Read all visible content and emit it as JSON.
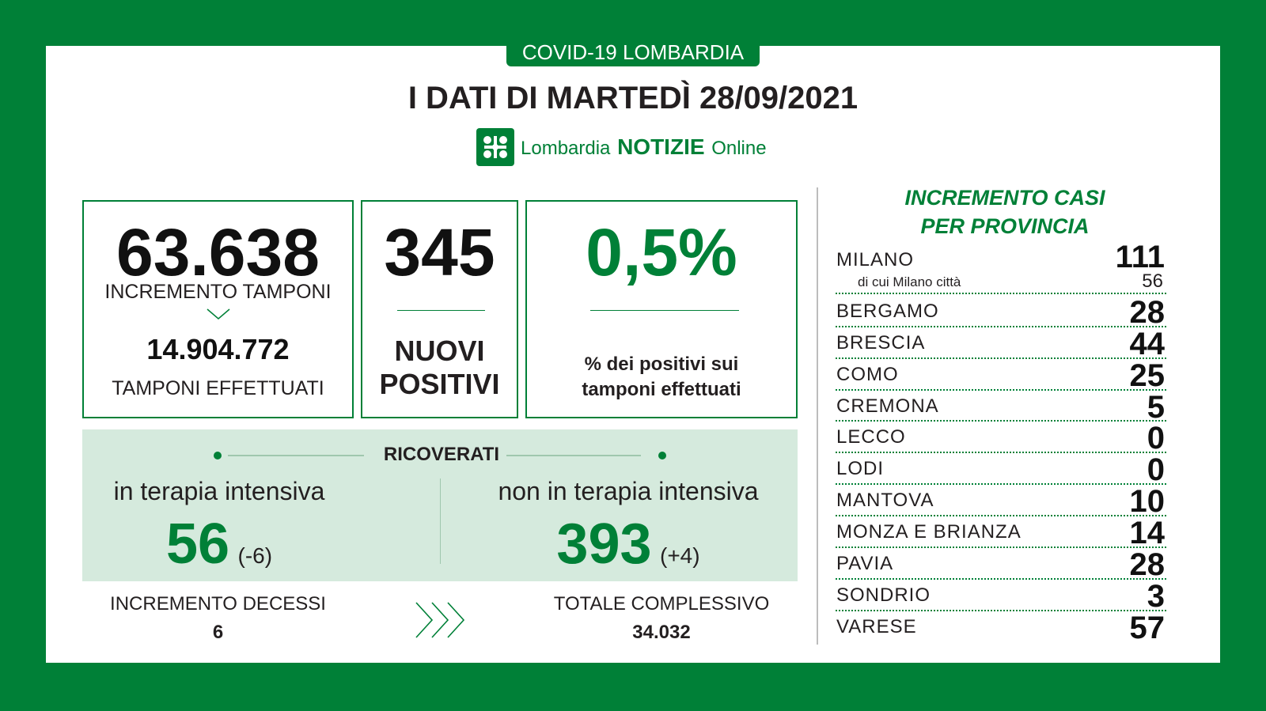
{
  "header": {
    "badge": "COVID-19 LOMBARDIA",
    "title": "I DATI DI MARTEDÌ 28/09/2021",
    "brand_pre": "Lombardia",
    "brand_mid": "NOTIZIE",
    "brand_post": "Online"
  },
  "tamponi": {
    "increment": "63.638",
    "increment_label": "INCREMENTO TAMPONI",
    "total": "14.904.772",
    "total_label": "TAMPONI EFFETTUATI"
  },
  "positivi": {
    "value": "345",
    "label_line1": "NUOVI",
    "label_line2": "POSITIVI"
  },
  "percent": {
    "value": "0,5%",
    "label_line1": "% dei positivi sui",
    "label_line2": "tamponi effettuati"
  },
  "ricoverati": {
    "title": "RICOVERATI",
    "ti_label": "in terapia intensiva",
    "ti_value": "56",
    "ti_delta": "(-6)",
    "nti_label": "non in terapia intensiva",
    "nti_value": "393",
    "nti_delta": "(+4)"
  },
  "decessi": {
    "label": "INCREMENTO DECESSI",
    "value": "6",
    "total_label": "TOTALE COMPLESSIVO",
    "total_value": "34.032"
  },
  "province": {
    "title_line1": "INCREMENTO CASI",
    "title_line2": "PER PROVINCIA",
    "milano_sub_label": "di cui Milano città",
    "milano_sub_value": "56",
    "items": [
      {
        "name": "MILANO",
        "value": "111"
      },
      {
        "name": "BERGAMO",
        "value": "28"
      },
      {
        "name": "BRESCIA",
        "value": "44"
      },
      {
        "name": "COMO",
        "value": "25"
      },
      {
        "name": "CREMONA",
        "value": "5"
      },
      {
        "name": "LECCO",
        "value": "0"
      },
      {
        "name": "LODI",
        "value": "0"
      },
      {
        "name": "MANTOVA",
        "value": "10"
      },
      {
        "name": "MONZA E BRIANZA",
        "value": "14"
      },
      {
        "name": "PAVIA",
        "value": "28"
      },
      {
        "name": "SONDRIO",
        "value": "3"
      },
      {
        "name": "VARESE",
        "value": "57"
      }
    ]
  },
  "colors": {
    "brand_green": "#008037",
    "band_green": "#d5eadd",
    "text_dark": "#231f20"
  }
}
